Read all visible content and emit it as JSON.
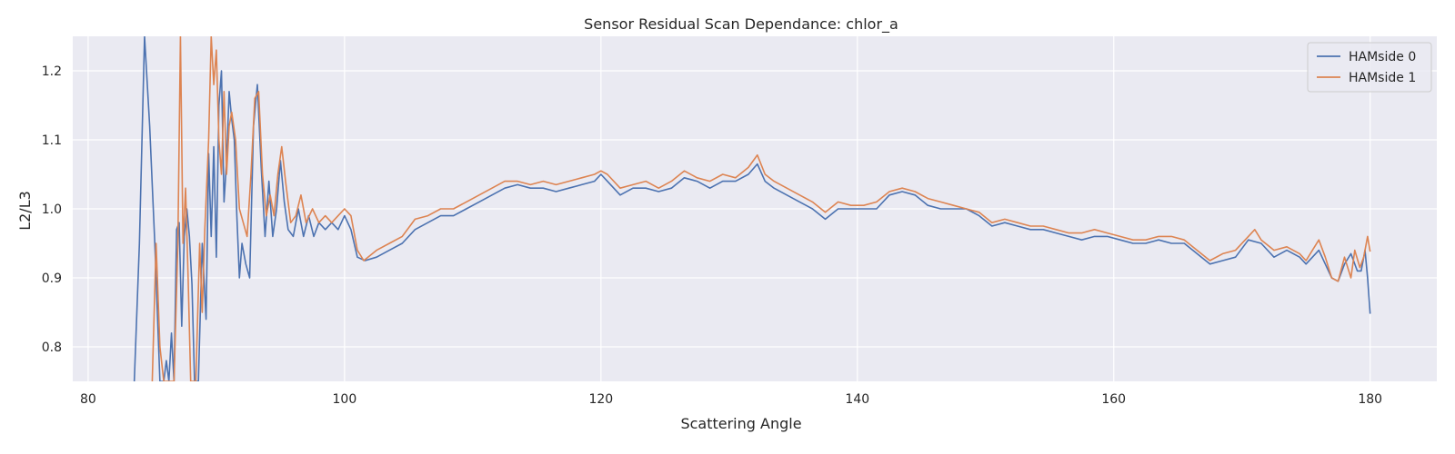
{
  "chart_data": {
    "type": "line",
    "title": "Sensor Residual Scan Dependance: chlor_a",
    "xlabel": "Scattering Angle",
    "ylabel": "L2/L3",
    "xlim": [
      78.8,
      185.2
    ],
    "ylim": [
      0.75,
      1.25
    ],
    "xticks": [
      80,
      100,
      120,
      140,
      160,
      180
    ],
    "yticks": [
      0.8,
      0.9,
      1.0,
      1.1,
      1.2
    ],
    "grid": true,
    "legend_position": "top-right",
    "colors": {
      "background": "#eaeaf2",
      "grid": "#ffffff"
    },
    "series": [
      {
        "name": "HAMside 0",
        "color": "#4c72b0",
        "points": [
          [
            83.6,
            0.75
          ],
          [
            84.0,
            0.95
          ],
          [
            84.4,
            1.25
          ],
          [
            84.8,
            1.12
          ],
          [
            85.2,
            0.95
          ],
          [
            85.6,
            0.75
          ],
          [
            85.9,
            0.75
          ],
          [
            86.1,
            0.78
          ],
          [
            86.3,
            0.75
          ],
          [
            86.5,
            0.82
          ],
          [
            86.7,
            0.75
          ],
          [
            86.9,
            0.97
          ],
          [
            87.1,
            0.98
          ],
          [
            87.3,
            0.83
          ],
          [
            87.5,
            0.96
          ],
          [
            87.7,
            1.0
          ],
          [
            87.9,
            0.96
          ],
          [
            88.1,
            0.89
          ],
          [
            88.3,
            0.75
          ],
          [
            88.6,
            0.75
          ],
          [
            88.9,
            0.95
          ],
          [
            89.2,
            0.84
          ],
          [
            89.4,
            1.08
          ],
          [
            89.6,
            0.96
          ],
          [
            89.8,
            1.09
          ],
          [
            90.0,
            0.93
          ],
          [
            90.2,
            1.15
          ],
          [
            90.4,
            1.2
          ],
          [
            90.6,
            1.01
          ],
          [
            90.8,
            1.07
          ],
          [
            91.0,
            1.17
          ],
          [
            91.2,
            1.13
          ],
          [
            91.4,
            1.1
          ],
          [
            91.6,
            0.99
          ],
          [
            91.8,
            0.9
          ],
          [
            92.0,
            0.95
          ],
          [
            92.3,
            0.92
          ],
          [
            92.6,
            0.9
          ],
          [
            92.9,
            1.12
          ],
          [
            93.2,
            1.18
          ],
          [
            93.5,
            1.06
          ],
          [
            93.8,
            0.96
          ],
          [
            94.1,
            1.04
          ],
          [
            94.4,
            0.96
          ],
          [
            94.7,
            1.0
          ],
          [
            95.0,
            1.07
          ],
          [
            95.3,
            1.01
          ],
          [
            95.6,
            0.97
          ],
          [
            96.0,
            0.96
          ],
          [
            96.4,
            1.0
          ],
          [
            96.8,
            0.96
          ],
          [
            97.2,
            0.99
          ],
          [
            97.6,
            0.96
          ],
          [
            98.0,
            0.98
          ],
          [
            98.5,
            0.97
          ],
          [
            99.0,
            0.98
          ],
          [
            99.5,
            0.97
          ],
          [
            100.0,
            0.99
          ],
          [
            100.5,
            0.97
          ],
          [
            101.0,
            0.93
          ],
          [
            101.6,
            0.925
          ],
          [
            102.5,
            0.93
          ],
          [
            103.5,
            0.94
          ],
          [
            104.5,
            0.95
          ],
          [
            105.5,
            0.97
          ],
          [
            106.5,
            0.98
          ],
          [
            107.5,
            0.99
          ],
          [
            108.5,
            0.99
          ],
          [
            109.5,
            1.0
          ],
          [
            110.5,
            1.01
          ],
          [
            111.5,
            1.02
          ],
          [
            112.5,
            1.03
          ],
          [
            113.5,
            1.035
          ],
          [
            114.5,
            1.03
          ],
          [
            115.5,
            1.03
          ],
          [
            116.5,
            1.025
          ],
          [
            117.5,
            1.03
          ],
          [
            118.5,
            1.035
          ],
          [
            119.5,
            1.04
          ],
          [
            120.0,
            1.05
          ],
          [
            120.5,
            1.04
          ],
          [
            121.5,
            1.02
          ],
          [
            122.5,
            1.03
          ],
          [
            123.5,
            1.03
          ],
          [
            124.5,
            1.025
          ],
          [
            125.5,
            1.03
          ],
          [
            126.5,
            1.045
          ],
          [
            127.5,
            1.04
          ],
          [
            128.5,
            1.03
          ],
          [
            129.5,
            1.04
          ],
          [
            130.5,
            1.04
          ],
          [
            131.5,
            1.05
          ],
          [
            132.2,
            1.065
          ],
          [
            132.8,
            1.04
          ],
          [
            133.5,
            1.03
          ],
          [
            134.5,
            1.02
          ],
          [
            135.5,
            1.01
          ],
          [
            136.5,
            1.0
          ],
          [
            137.5,
            0.985
          ],
          [
            138.5,
            1.0
          ],
          [
            139.5,
            1.0
          ],
          [
            140.5,
            1.0
          ],
          [
            141.5,
            1.0
          ],
          [
            142.5,
            1.02
          ],
          [
            143.5,
            1.025
          ],
          [
            144.5,
            1.02
          ],
          [
            145.5,
            1.005
          ],
          [
            146.5,
            1.0
          ],
          [
            147.5,
            1.0
          ],
          [
            148.5,
            1.0
          ],
          [
            149.5,
            0.99
          ],
          [
            150.5,
            0.975
          ],
          [
            151.5,
            0.98
          ],
          [
            152.5,
            0.975
          ],
          [
            153.5,
            0.97
          ],
          [
            154.5,
            0.97
          ],
          [
            155.5,
            0.965
          ],
          [
            156.5,
            0.96
          ],
          [
            157.5,
            0.955
          ],
          [
            158.5,
            0.96
          ],
          [
            159.5,
            0.96
          ],
          [
            160.5,
            0.955
          ],
          [
            161.5,
            0.95
          ],
          [
            162.5,
            0.95
          ],
          [
            163.5,
            0.955
          ],
          [
            164.5,
            0.95
          ],
          [
            165.5,
            0.95
          ],
          [
            166.5,
            0.935
          ],
          [
            167.5,
            0.92
          ],
          [
            168.5,
            0.925
          ],
          [
            169.5,
            0.93
          ],
          [
            170.5,
            0.955
          ],
          [
            171.5,
            0.95
          ],
          [
            172.5,
            0.93
          ],
          [
            173.5,
            0.94
          ],
          [
            174.5,
            0.93
          ],
          [
            175.0,
            0.92
          ],
          [
            175.5,
            0.93
          ],
          [
            176.0,
            0.94
          ],
          [
            176.5,
            0.92
          ],
          [
            177.0,
            0.9
          ],
          [
            177.5,
            0.895
          ],
          [
            178.0,
            0.92
          ],
          [
            178.5,
            0.935
          ],
          [
            179.0,
            0.91
          ],
          [
            179.3,
            0.91
          ],
          [
            179.6,
            0.94
          ],
          [
            179.8,
            0.9
          ],
          [
            180.0,
            0.848
          ]
        ]
      },
      {
        "name": "HAMside 1",
        "color": "#dd8452",
        "points": [
          [
            85.0,
            0.75
          ],
          [
            85.3,
            0.95
          ],
          [
            85.6,
            0.8
          ],
          [
            85.9,
            0.75
          ],
          [
            86.4,
            0.75
          ],
          [
            86.7,
            0.75
          ],
          [
            87.0,
            0.95
          ],
          [
            87.2,
            1.25
          ],
          [
            87.4,
            0.95
          ],
          [
            87.6,
            1.03
          ],
          [
            87.8,
            0.9
          ],
          [
            88.0,
            0.75
          ],
          [
            88.4,
            0.75
          ],
          [
            88.7,
            0.95
          ],
          [
            88.9,
            0.85
          ],
          [
            89.1,
            0.97
          ],
          [
            89.4,
            1.1
          ],
          [
            89.6,
            1.25
          ],
          [
            89.8,
            1.18
          ],
          [
            90.0,
            1.23
          ],
          [
            90.2,
            1.1
          ],
          [
            90.4,
            1.05
          ],
          [
            90.6,
            1.17
          ],
          [
            90.8,
            1.05
          ],
          [
            91.0,
            1.12
          ],
          [
            91.2,
            1.14
          ],
          [
            91.5,
            1.1
          ],
          [
            91.8,
            1.0
          ],
          [
            92.1,
            0.98
          ],
          [
            92.4,
            0.96
          ],
          [
            92.7,
            1.05
          ],
          [
            93.0,
            1.16
          ],
          [
            93.3,
            1.17
          ],
          [
            93.6,
            1.05
          ],
          [
            93.9,
            0.99
          ],
          [
            94.2,
            1.02
          ],
          [
            94.5,
            0.99
          ],
          [
            94.8,
            1.05
          ],
          [
            95.1,
            1.09
          ],
          [
            95.4,
            1.04
          ],
          [
            95.8,
            0.98
          ],
          [
            96.2,
            0.99
          ],
          [
            96.6,
            1.02
          ],
          [
            97.0,
            0.98
          ],
          [
            97.5,
            1.0
          ],
          [
            98.0,
            0.98
          ],
          [
            98.5,
            0.99
          ],
          [
            99.0,
            0.98
          ],
          [
            99.5,
            0.99
          ],
          [
            100.0,
            1.0
          ],
          [
            100.5,
            0.99
          ],
          [
            101.0,
            0.94
          ],
          [
            101.5,
            0.925
          ],
          [
            102.5,
            0.94
          ],
          [
            103.5,
            0.95
          ],
          [
            104.5,
            0.96
          ],
          [
            105.5,
            0.985
          ],
          [
            106.5,
            0.99
          ],
          [
            107.5,
            1.0
          ],
          [
            108.5,
            1.0
          ],
          [
            109.5,
            1.01
          ],
          [
            110.5,
            1.02
          ],
          [
            111.5,
            1.03
          ],
          [
            112.5,
            1.04
          ],
          [
            113.5,
            1.04
          ],
          [
            114.5,
            1.035
          ],
          [
            115.5,
            1.04
          ],
          [
            116.5,
            1.035
          ],
          [
            117.5,
            1.04
          ],
          [
            118.5,
            1.045
          ],
          [
            119.5,
            1.05
          ],
          [
            120.0,
            1.055
          ],
          [
            120.5,
            1.05
          ],
          [
            121.5,
            1.03
          ],
          [
            122.5,
            1.035
          ],
          [
            123.5,
            1.04
          ],
          [
            124.5,
            1.03
          ],
          [
            125.5,
            1.04
          ],
          [
            126.5,
            1.055
          ],
          [
            127.5,
            1.045
          ],
          [
            128.5,
            1.04
          ],
          [
            129.5,
            1.05
          ],
          [
            130.5,
            1.045
          ],
          [
            131.5,
            1.06
          ],
          [
            132.2,
            1.078
          ],
          [
            132.8,
            1.05
          ],
          [
            133.5,
            1.04
          ],
          [
            134.5,
            1.03
          ],
          [
            135.5,
            1.02
          ],
          [
            136.5,
            1.01
          ],
          [
            137.5,
            0.995
          ],
          [
            138.5,
            1.01
          ],
          [
            139.5,
            1.005
          ],
          [
            140.5,
            1.005
          ],
          [
            141.5,
            1.01
          ],
          [
            142.5,
            1.025
          ],
          [
            143.5,
            1.03
          ],
          [
            144.5,
            1.025
          ],
          [
            145.5,
            1.015
          ],
          [
            146.5,
            1.01
          ],
          [
            147.5,
            1.005
          ],
          [
            148.5,
            1.0
          ],
          [
            149.5,
            0.995
          ],
          [
            150.5,
            0.98
          ],
          [
            151.5,
            0.985
          ],
          [
            152.5,
            0.98
          ],
          [
            153.5,
            0.975
          ],
          [
            154.5,
            0.975
          ],
          [
            155.5,
            0.97
          ],
          [
            156.5,
            0.965
          ],
          [
            157.5,
            0.965
          ],
          [
            158.5,
            0.97
          ],
          [
            159.5,
            0.965
          ],
          [
            160.5,
            0.96
          ],
          [
            161.5,
            0.955
          ],
          [
            162.5,
            0.955
          ],
          [
            163.5,
            0.96
          ],
          [
            164.5,
            0.96
          ],
          [
            165.5,
            0.955
          ],
          [
            166.5,
            0.94
          ],
          [
            167.5,
            0.925
          ],
          [
            168.5,
            0.935
          ],
          [
            169.5,
            0.94
          ],
          [
            170.5,
            0.96
          ],
          [
            171.0,
            0.97
          ],
          [
            171.5,
            0.955
          ],
          [
            172.5,
            0.94
          ],
          [
            173.5,
            0.945
          ],
          [
            174.5,
            0.935
          ],
          [
            175.0,
            0.925
          ],
          [
            175.5,
            0.94
          ],
          [
            176.0,
            0.955
          ],
          [
            176.5,
            0.93
          ],
          [
            177.0,
            0.9
          ],
          [
            177.5,
            0.895
          ],
          [
            178.0,
            0.93
          ],
          [
            178.5,
            0.9
          ],
          [
            178.8,
            0.94
          ],
          [
            179.2,
            0.915
          ],
          [
            179.5,
            0.93
          ],
          [
            179.8,
            0.96
          ],
          [
            180.0,
            0.938
          ]
        ]
      }
    ]
  }
}
